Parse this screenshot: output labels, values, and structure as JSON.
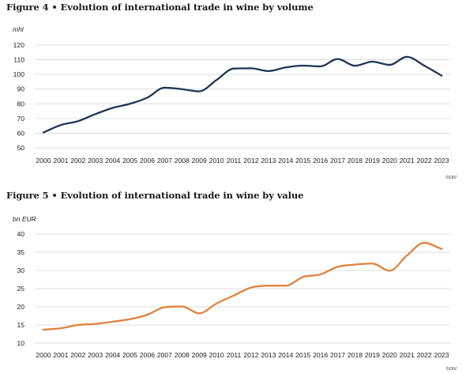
{
  "chart_data": [
    {
      "type": "line",
      "title": "Figure 4 • Evolution of international trade in wine by volume",
      "ylabel": "mhl",
      "source": "©OIV",
      "ylim": [
        50,
        120
      ],
      "yticks": [
        50,
        60,
        70,
        80,
        90,
        100,
        110,
        120
      ],
      "grid": true,
      "color": "#1f3456",
      "x": [
        "2000",
        "2001",
        "2002",
        "2003",
        "2004",
        "2005",
        "2006",
        "2007",
        "2008",
        "2009",
        "2010",
        "2011",
        "2012",
        "2013",
        "2014",
        "2015",
        "2016",
        "2017",
        "2018",
        "2019",
        "2020",
        "2021",
        "2022",
        "2023"
      ],
      "values": [
        60.5,
        65.5,
        68.2,
        73.0,
        77.2,
        80.0,
        84.2,
        91.0,
        90.0,
        88.5,
        96.2,
        104.0,
        104.2,
        102.3,
        104.8,
        106.0,
        105.5,
        110.5,
        105.9,
        108.7,
        106.5,
        112.0,
        106.0,
        99.2
      ]
    },
    {
      "type": "line",
      "title": "Figure 5 • Evolution of international trade in wine by value",
      "ylabel": "bn EUR",
      "source": "©OIV",
      "ylim": [
        10,
        40
      ],
      "yticks": [
        10,
        15,
        20,
        25,
        30,
        35,
        40
      ],
      "grid": true,
      "color": "#e0823e",
      "x": [
        "2000",
        "2001",
        "2002",
        "2003",
        "2004",
        "2005",
        "2006",
        "2007",
        "2008",
        "2009",
        "2010",
        "2011",
        "2012",
        "2013",
        "2014",
        "2015",
        "2016",
        "2017",
        "2018",
        "2019",
        "2020",
        "2021",
        "2022",
        "2023"
      ],
      "values": [
        13.7,
        14.1,
        15.0,
        15.3,
        15.9,
        16.6,
        17.8,
        19.9,
        20.1,
        18.2,
        20.9,
        23.1,
        25.3,
        25.8,
        25.8,
        28.2,
        28.9,
        31.0,
        31.6,
        31.9,
        29.9,
        34.1,
        37.6,
        35.9
      ]
    }
  ]
}
